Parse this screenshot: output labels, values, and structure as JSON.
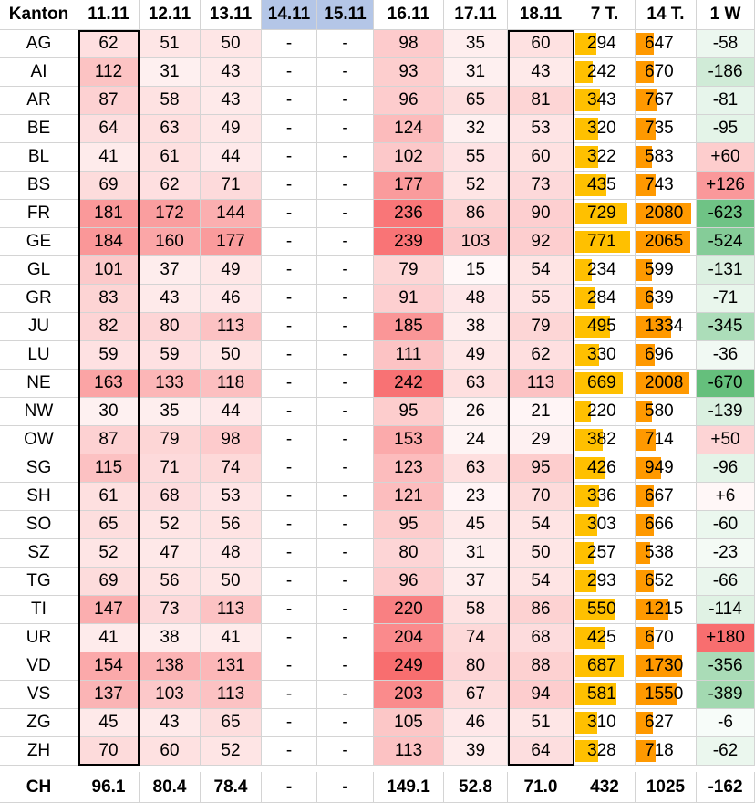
{
  "header": {
    "canton_label": "Kanton",
    "dates": [
      "11.11",
      "12.11",
      "13.11",
      "14.11",
      "15.11",
      "16.11",
      "17.11",
      "18.11"
    ],
    "sum7_label": "7 T.",
    "sum14_label": "14 T.",
    "week_label": "1 W"
  },
  "colors": {
    "weekend_header_bg": "#b4c6e7",
    "bar_7d": "#ffc000",
    "bar_14d": "#ff9900",
    "heat_high": "#f8696b",
    "diff_negative": "#63be7b",
    "diff_positive": "#f8696b"
  },
  "rows": [
    {
      "canton": "AG",
      "values": [
        "62",
        "51",
        "50",
        "-",
        "-",
        "98",
        "35",
        "60"
      ],
      "sum7": "294",
      "sum14": "647",
      "week": "-58"
    },
    {
      "canton": "AI",
      "values": [
        "112",
        "31",
        "43",
        "-",
        "-",
        "93",
        "31",
        "43"
      ],
      "sum7": "242",
      "sum14": "670",
      "week": "-186"
    },
    {
      "canton": "AR",
      "values": [
        "87",
        "58",
        "43",
        "-",
        "-",
        "96",
        "65",
        "81"
      ],
      "sum7": "343",
      "sum14": "767",
      "week": "-81"
    },
    {
      "canton": "BE",
      "values": [
        "64",
        "63",
        "49",
        "-",
        "-",
        "124",
        "32",
        "53"
      ],
      "sum7": "320",
      "sum14": "735",
      "week": "-95"
    },
    {
      "canton": "BL",
      "values": [
        "41",
        "61",
        "44",
        "-",
        "-",
        "102",
        "55",
        "60"
      ],
      "sum7": "322",
      "sum14": "583",
      "week": "+60"
    },
    {
      "canton": "BS",
      "values": [
        "69",
        "62",
        "71",
        "-",
        "-",
        "177",
        "52",
        "73"
      ],
      "sum7": "435",
      "sum14": "743",
      "week": "+126"
    },
    {
      "canton": "FR",
      "values": [
        "181",
        "172",
        "144",
        "-",
        "-",
        "236",
        "86",
        "90"
      ],
      "sum7": "729",
      "sum14": "2080",
      "week": "-623"
    },
    {
      "canton": "GE",
      "values": [
        "184",
        "160",
        "177",
        "-",
        "-",
        "239",
        "103",
        "92"
      ],
      "sum7": "771",
      "sum14": "2065",
      "week": "-524"
    },
    {
      "canton": "GL",
      "values": [
        "101",
        "37",
        "49",
        "-",
        "-",
        "79",
        "15",
        "54"
      ],
      "sum7": "234",
      "sum14": "599",
      "week": "-131"
    },
    {
      "canton": "GR",
      "values": [
        "83",
        "43",
        "46",
        "-",
        "-",
        "91",
        "48",
        "55"
      ],
      "sum7": "284",
      "sum14": "639",
      "week": "-71"
    },
    {
      "canton": "JU",
      "values": [
        "82",
        "80",
        "113",
        "-",
        "-",
        "185",
        "38",
        "79"
      ],
      "sum7": "495",
      "sum14": "1334",
      "week": "-345"
    },
    {
      "canton": "LU",
      "values": [
        "59",
        "59",
        "50",
        "-",
        "-",
        "111",
        "49",
        "62"
      ],
      "sum7": "330",
      "sum14": "696",
      "week": "-36"
    },
    {
      "canton": "NE",
      "values": [
        "163",
        "133",
        "118",
        "-",
        "-",
        "242",
        "63",
        "113"
      ],
      "sum7": "669",
      "sum14": "2008",
      "week": "-670"
    },
    {
      "canton": "NW",
      "values": [
        "30",
        "35",
        "44",
        "-",
        "-",
        "95",
        "26",
        "21"
      ],
      "sum7": "220",
      "sum14": "580",
      "week": "-139"
    },
    {
      "canton": "OW",
      "values": [
        "87",
        "79",
        "98",
        "-",
        "-",
        "153",
        "24",
        "29"
      ],
      "sum7": "382",
      "sum14": "714",
      "week": "+50"
    },
    {
      "canton": "SG",
      "values": [
        "115",
        "71",
        "74",
        "-",
        "-",
        "123",
        "63",
        "95"
      ],
      "sum7": "426",
      "sum14": "949",
      "week": "-96"
    },
    {
      "canton": "SH",
      "values": [
        "61",
        "68",
        "53",
        "-",
        "-",
        "121",
        "23",
        "70"
      ],
      "sum7": "336",
      "sum14": "667",
      "week": "+6"
    },
    {
      "canton": "SO",
      "values": [
        "65",
        "52",
        "56",
        "-",
        "-",
        "95",
        "45",
        "54"
      ],
      "sum7": "303",
      "sum14": "666",
      "week": "-60"
    },
    {
      "canton": "SZ",
      "values": [
        "52",
        "47",
        "48",
        "-",
        "-",
        "80",
        "31",
        "50"
      ],
      "sum7": "257",
      "sum14": "538",
      "week": "-23"
    },
    {
      "canton": "TG",
      "values": [
        "69",
        "56",
        "50",
        "-",
        "-",
        "96",
        "37",
        "54"
      ],
      "sum7": "293",
      "sum14": "652",
      "week": "-66"
    },
    {
      "canton": "TI",
      "values": [
        "147",
        "73",
        "113",
        "-",
        "-",
        "220",
        "58",
        "86"
      ],
      "sum7": "550",
      "sum14": "1215",
      "week": "-114"
    },
    {
      "canton": "UR",
      "values": [
        "41",
        "38",
        "41",
        "-",
        "-",
        "204",
        "74",
        "68"
      ],
      "sum7": "425",
      "sum14": "670",
      "week": "+180"
    },
    {
      "canton": "VD",
      "values": [
        "154",
        "138",
        "131",
        "-",
        "-",
        "249",
        "80",
        "88"
      ],
      "sum7": "687",
      "sum14": "1730",
      "week": "-356"
    },
    {
      "canton": "VS",
      "values": [
        "137",
        "103",
        "113",
        "-",
        "-",
        "203",
        "67",
        "94"
      ],
      "sum7": "581",
      "sum14": "1550",
      "week": "-389"
    },
    {
      "canton": "ZG",
      "values": [
        "45",
        "43",
        "65",
        "-",
        "-",
        "105",
        "46",
        "51"
      ],
      "sum7": "310",
      "sum14": "627",
      "week": "-6"
    },
    {
      "canton": "ZH",
      "values": [
        "70",
        "60",
        "52",
        "-",
        "-",
        "113",
        "39",
        "64"
      ],
      "sum7": "328",
      "sum14": "718",
      "week": "-62"
    }
  ],
  "total": {
    "canton": "CH",
    "values": [
      "96.1",
      "80.4",
      "78.4",
      "-",
      "-",
      "149.1",
      "52.8",
      "71.0"
    ],
    "sum7": "432",
    "sum14": "1025",
    "week": "-162"
  }
}
